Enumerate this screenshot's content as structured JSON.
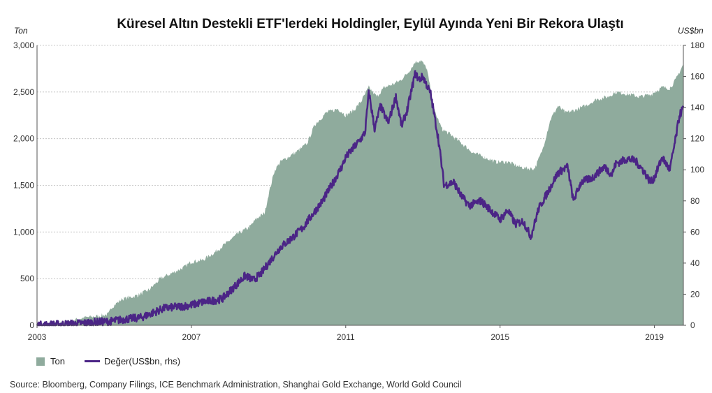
{
  "chart_data": {
    "type": "area",
    "title": "Küresel Altın Destekli ETF'lerdeki Holdingler, Eylül Ayında Yeni Bir Rekora Ulaştı",
    "ylabel_left": "Ton",
    "ylabel_right": "US$bn",
    "ylim_left": [
      0,
      3000
    ],
    "ylim_right": [
      0,
      180
    ],
    "yticks_left": [
      "0",
      "500",
      "1,000",
      "1,500",
      "2,000",
      "2,500",
      "3,000"
    ],
    "yticks_right": [
      "0",
      "20",
      "40",
      "60",
      "80",
      "100",
      "120",
      "140",
      "160",
      "180"
    ],
    "xlim": [
      2003.0,
      2019.75
    ],
    "xticks": [
      "2003",
      "2007",
      "2011",
      "2015",
      "2019"
    ],
    "grid": true,
    "legend_position": "bottom-left",
    "legend": {
      "tonnes_label": "Ton",
      "value_label": "Değer(US$bn, rhs)"
    },
    "colors": {
      "tonnes": "#8fab9d",
      "value": "#4b2586"
    },
    "series": [
      {
        "name": "Ton",
        "axis": "left",
        "x": [
          2003.0,
          2003.5,
          2003.9,
          2004.2,
          2004.6,
          2004.85,
          2004.95,
          2005.2,
          2005.6,
          2005.9,
          2006.2,
          2006.5,
          2006.8,
          2007.0,
          2007.3,
          2007.6,
          2007.9,
          2008.2,
          2008.5,
          2008.7,
          2008.9,
          2009.0,
          2009.15,
          2009.3,
          2009.5,
          2009.8,
          2010.0,
          2010.2,
          2010.5,
          2010.8,
          2011.0,
          2011.2,
          2011.4,
          2011.6,
          2011.8,
          2012.0,
          2012.2,
          2012.4,
          2012.6,
          2012.8,
          2012.95,
          2013.1,
          2013.3,
          2013.5,
          2013.7,
          2014.0,
          2014.3,
          2014.6,
          2014.9,
          2015.2,
          2015.5,
          2015.7,
          2015.9,
          2016.1,
          2016.3,
          2016.5,
          2016.7,
          2016.9,
          2017.2,
          2017.5,
          2017.8,
          2018.0,
          2018.3,
          2018.6,
          2018.9,
          2019.0,
          2019.2,
          2019.4,
          2019.55,
          2019.75
        ],
        "values": [
          5,
          20,
          50,
          80,
          100,
          120,
          200,
          280,
          320,
          380,
          500,
          560,
          620,
          680,
          700,
          780,
          880,
          980,
          1050,
          1150,
          1200,
          1400,
          1650,
          1750,
          1800,
          1880,
          1950,
          2150,
          2280,
          2320,
          2250,
          2300,
          2400,
          2550,
          2450,
          2550,
          2580,
          2620,
          2700,
          2820,
          2840,
          2750,
          2300,
          2100,
          2050,
          1950,
          1850,
          1800,
          1750,
          1750,
          1700,
          1680,
          1680,
          1880,
          2200,
          2350,
          2280,
          2300,
          2350,
          2420,
          2450,
          2500,
          2480,
          2450,
          2470,
          2500,
          2550,
          2540,
          2630,
          2800
        ]
      },
      {
        "name": "Değer(US$bn, rhs)",
        "axis": "right",
        "x": [
          2003.0,
          2003.5,
          2004.0,
          2004.5,
          2004.9,
          2005.3,
          2005.7,
          2006.0,
          2006.3,
          2006.7,
          2007.0,
          2007.3,
          2007.6,
          2007.8,
          2008.0,
          2008.2,
          2008.4,
          2008.6,
          2008.8,
          2009.0,
          2009.3,
          2009.6,
          2009.9,
          2010.1,
          2010.4,
          2010.7,
          2010.9,
          2011.0,
          2011.2,
          2011.4,
          2011.5,
          2011.6,
          2011.75,
          2011.9,
          2012.1,
          2012.3,
          2012.45,
          2012.6,
          2012.8,
          2012.9,
          2013.0,
          2013.2,
          2013.4,
          2013.55,
          2013.8,
          2014.0,
          2014.2,
          2014.5,
          2014.8,
          2015.0,
          2015.2,
          2015.4,
          2015.6,
          2015.8,
          2016.0,
          2016.2,
          2016.5,
          2016.75,
          2016.9,
          2017.1,
          2017.4,
          2017.7,
          2017.9,
          2018.0,
          2018.3,
          2018.5,
          2018.7,
          2018.9,
          2019.0,
          2019.2,
          2019.4,
          2019.55,
          2019.65,
          2019.75
        ],
        "values": [
          0,
          0.5,
          1,
          2,
          2.5,
          4,
          5,
          8,
          11,
          12,
          13,
          15,
          16,
          17,
          22,
          27,
          32,
          29,
          33,
          40,
          50,
          56,
          63,
          70,
          80,
          93,
          102,
          108,
          114,
          120,
          124,
          150,
          126,
          141,
          130,
          147,
          128,
          139,
          162,
          158,
          160,
          149,
          120,
          90,
          92,
          83,
          77,
          80,
          73,
          68,
          74,
          65,
          67,
          57,
          75,
          84,
          98,
          102,
          80,
          92,
          95,
          102,
          97,
          104,
          107,
          106,
          100,
          92,
          95,
          108,
          100,
          120,
          135,
          140
        ]
      }
    ]
  },
  "source": "Source: Bloomberg, Company Filings, ICE Benchmark Administration, Shanghai Gold Exchange, World Gold Council"
}
